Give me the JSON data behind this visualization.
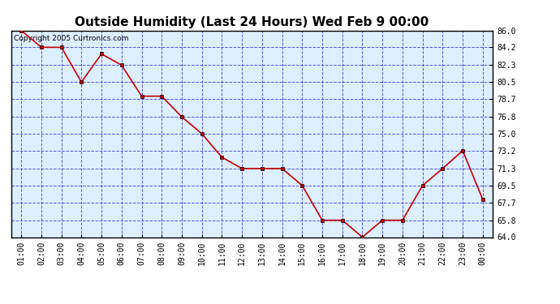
{
  "title": "Outside Humidity (Last 24 Hours) Wed Feb 9 00:00",
  "copyright": "Copyright 2005 Curtronics.com",
  "x_labels": [
    "01:00",
    "02:00",
    "03:00",
    "04:00",
    "05:00",
    "06:00",
    "07:00",
    "08:00",
    "09:00",
    "10:00",
    "11:00",
    "12:00",
    "13:00",
    "14:00",
    "15:00",
    "16:00",
    "17:00",
    "18:00",
    "19:00",
    "20:00",
    "21:00",
    "22:00",
    "23:00",
    "00:00"
  ],
  "x_values": [
    1,
    2,
    3,
    4,
    5,
    6,
    7,
    8,
    9,
    10,
    11,
    12,
    13,
    14,
    15,
    16,
    17,
    18,
    19,
    20,
    21,
    22,
    23,
    24
  ],
  "y_values": [
    86.0,
    84.2,
    84.2,
    80.5,
    83.5,
    82.3,
    79.0,
    79.0,
    76.8,
    75.0,
    72.5,
    71.3,
    71.3,
    71.3,
    69.5,
    65.8,
    65.8,
    64.0,
    65.8,
    65.8,
    69.5,
    71.3,
    73.2,
    68.0
  ],
  "ylim": [
    64.0,
    86.0
  ],
  "yticks": [
    86.0,
    84.2,
    82.3,
    80.5,
    78.7,
    76.8,
    75.0,
    73.2,
    71.3,
    69.5,
    67.7,
    65.8,
    64.0
  ],
  "ytick_labels": [
    "86.0",
    "84.2",
    "82.3",
    "80.5",
    "78.7",
    "76.8",
    "75.0",
    "73.2",
    "71.3",
    "69.5",
    "67.7",
    "65.8",
    "64.0"
  ],
  "line_color": "#cc0000",
  "marker_color": "#cc0000",
  "marker_edge_color": "#000000",
  "bg_color": "#ffffff",
  "plot_bg_color": "#ddeeff",
  "grid_color": "#3333cc",
  "axis_color": "#000000",
  "title_fontsize": 11,
  "tick_fontsize": 7,
  "copyright_fontsize": 6.5,
  "figwidth": 6.9,
  "figheight": 3.75,
  "dpi": 100
}
